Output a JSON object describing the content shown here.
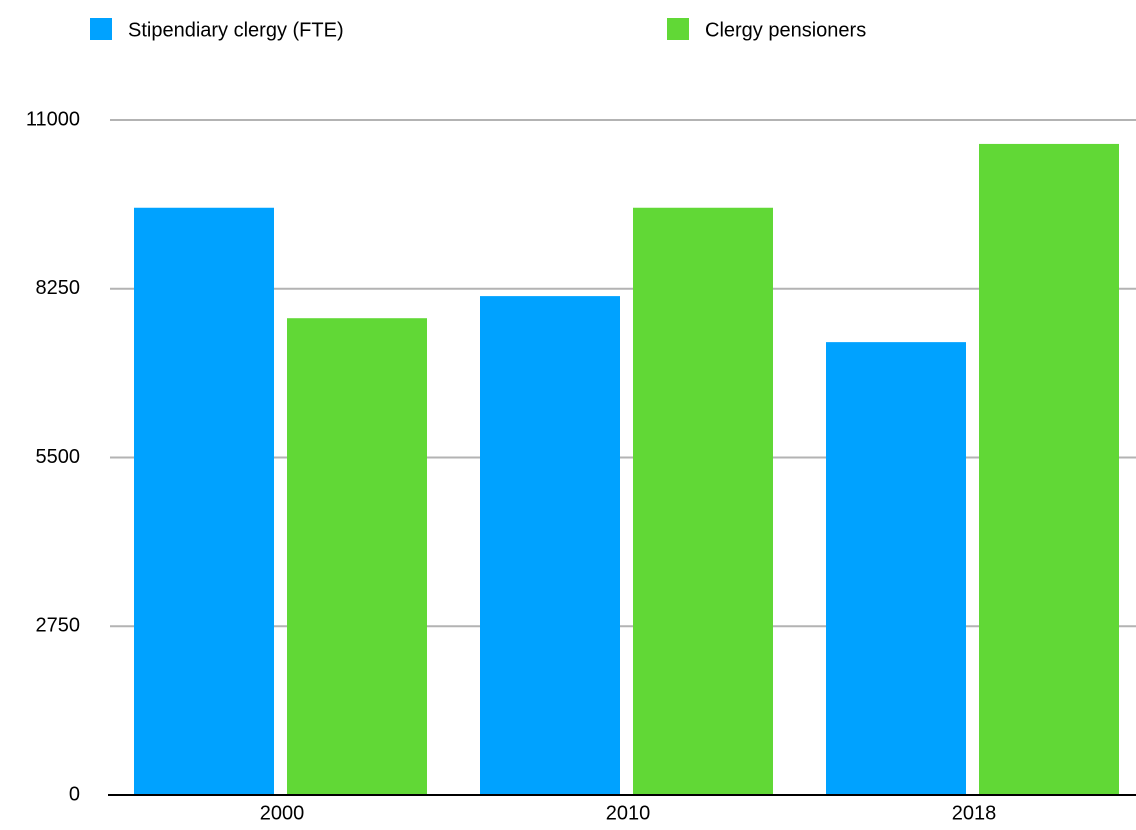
{
  "chart_data": {
    "type": "bar",
    "categories": [
      "2000",
      "2010",
      "2018"
    ],
    "series": [
      {
        "name": "Stipendiary clergy  (FTE)",
        "color": "#00a2ff",
        "values": [
          9570,
          8130,
          7380
        ]
      },
      {
        "name": "Clergy pensioners",
        "color": "#61d836",
        "values": [
          7770,
          9570,
          10610
        ]
      }
    ],
    "ylim": [
      0,
      11000
    ],
    "yticks": [
      0,
      2750,
      5500,
      8250,
      11000
    ],
    "grid": true,
    "legend": "top"
  }
}
